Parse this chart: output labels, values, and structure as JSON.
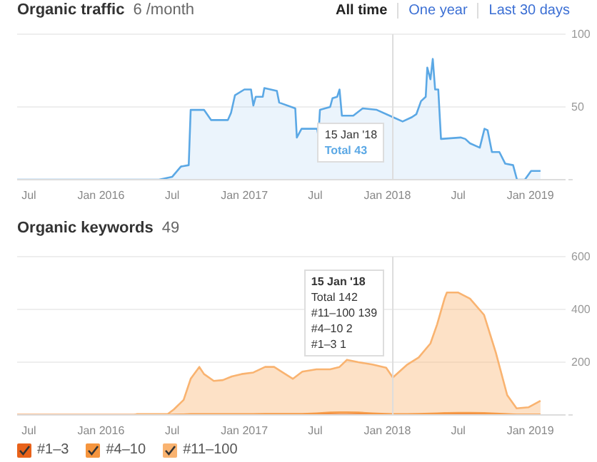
{
  "chart_data": [
    {
      "type": "area",
      "title": "Organic traffic",
      "subtitle": "6 /month",
      "x": [
        "2015-06-01",
        "2016-05-28",
        "2016-07-01",
        "2016-07-23",
        "2016-08-12",
        "2016-08-17",
        "2016-08-29",
        "2016-09-20",
        "2016-10-08",
        "2016-11-20",
        "2016-11-28",
        "2016-12-08",
        "2017-01-01",
        "2017-01-18",
        "2017-01-24",
        "2017-01-30",
        "2017-02-17",
        "2017-02-21",
        "2017-03-25",
        "2017-03-31",
        "2017-05-11",
        "2017-05-15",
        "2017-05-27",
        "2017-07-06",
        "2017-07-09",
        "2017-07-13",
        "2017-08-08",
        "2017-08-14",
        "2017-08-26",
        "2017-09-01",
        "2017-09-07",
        "2017-10-06",
        "2017-10-30",
        "2017-12-05",
        "2018-01-15",
        "2018-02-09",
        "2018-03-05",
        "2018-03-16",
        "2018-03-28",
        "2018-04-09",
        "2018-04-13",
        "2018-04-21",
        "2018-04-27",
        "2018-05-03",
        "2018-05-11",
        "2018-05-18",
        "2018-07-07",
        "2018-07-19",
        "2018-07-31",
        "2018-08-25",
        "2018-09-06",
        "2018-09-14",
        "2018-09-25",
        "2018-10-14",
        "2018-10-29",
        "2018-11-18",
        "2018-11-28",
        "2018-12-18",
        "2019-01-03",
        "2019-01-27"
      ],
      "values": [
        0,
        0,
        2,
        9,
        10,
        48,
        48,
        48,
        41,
        41,
        46,
        58,
        62,
        62,
        51,
        57,
        57,
        63,
        61,
        53,
        49,
        29,
        35,
        35,
        30,
        48,
        50,
        56,
        57,
        62,
        44,
        44,
        49,
        48,
        43,
        40,
        43,
        45,
        54,
        57,
        77,
        69,
        83,
        62,
        62,
        28,
        29,
        28,
        25,
        22,
        35,
        34,
        19,
        19,
        11,
        10,
        0,
        0,
        6,
        6
      ],
      "color": "#5ba8e5",
      "xlim": [
        "2015-06-01",
        "2019-04-01"
      ],
      "xticks": [
        {
          "value": "2015-07-01",
          "label": "Jul"
        },
        {
          "value": "2016-01-01",
          "label": "Jan 2016"
        },
        {
          "value": "2016-07-01",
          "label": "Jul"
        },
        {
          "value": "2017-01-01",
          "label": "Jan 2017"
        },
        {
          "value": "2017-07-01",
          "label": "Jul"
        },
        {
          "value": "2018-01-01",
          "label": "Jan 2018"
        },
        {
          "value": "2018-07-01",
          "label": "Jul"
        },
        {
          "value": "2019-01-01",
          "label": "Jan 2019"
        }
      ],
      "ylim": [
        0,
        100
      ],
      "yticks": [
        {
          "value": 0,
          "label": null
        },
        50,
        100
      ],
      "grid": "y",
      "ref_lines": [
        {
          "axis": "x",
          "value": "2018-01-15",
          "color": "#dddddd"
        }
      ],
      "annotations": [
        "All time",
        "One year",
        "Last 30 days",
        "15 Jan '18",
        "Total 43"
      ]
    },
    {
      "type": "area",
      "stacked": true,
      "title": "Organic keywords",
      "subtitle": "49",
      "x": [
        "2015-06-01",
        "2016-03-25",
        "2016-04-01",
        "2016-06-20",
        "2016-07-05",
        "2016-07-30",
        "2016-08-17",
        "2016-09-08",
        "2016-09-20",
        "2016-10-15",
        "2016-11-07",
        "2016-11-30",
        "2016-12-25",
        "2017-01-24",
        "2017-02-23",
        "2017-03-18",
        "2017-04-09",
        "2017-05-05",
        "2017-05-29",
        "2017-07-04",
        "2017-08-08",
        "2017-09-01",
        "2017-09-20",
        "2017-10-19",
        "2017-11-24",
        "2017-12-29",
        "2018-01-15",
        "2018-02-21",
        "2018-03-22",
        "2018-04-21",
        "2018-05-08",
        "2018-05-27",
        "2018-06-02",
        "2018-07-01",
        "2018-07-31",
        "2018-09-05",
        "2018-10-05",
        "2018-11-03",
        "2018-11-27",
        "2018-12-27",
        "2019-01-27"
      ],
      "series": [
        {
          "name": "#1–3",
          "color": "#e8621a",
          "values": [
            0,
            0,
            0,
            0,
            0,
            1,
            1,
            1,
            1,
            1,
            1,
            1,
            1,
            1,
            1,
            1,
            1,
            1,
            1,
            1,
            1,
            1,
            1,
            1,
            1,
            1,
            1,
            1,
            1,
            1,
            1,
            1,
            1,
            1,
            1,
            1,
            1,
            1,
            0,
            0,
            0
          ]
        },
        {
          "name": "#4–10",
          "color": "#f5953e",
          "values": [
            0,
            0,
            0,
            0,
            1,
            1,
            2,
            2,
            2,
            2,
            2,
            2,
            2,
            2,
            3,
            3,
            3,
            3,
            3,
            5,
            8,
            9,
            9,
            8,
            5,
            3,
            2,
            2,
            3,
            4,
            5,
            6,
            6,
            7,
            7,
            6,
            4,
            2,
            1,
            1,
            1
          ]
        },
        {
          "name": "#11–100",
          "color": "#f9b370",
          "values": [
            0,
            0,
            3,
            4,
            20,
            55,
            134,
            179,
            152,
            126,
            129,
            143,
            152,
            158,
            178,
            178,
            157,
            133,
            160,
            167,
            164,
            172,
            199,
            191,
            185,
            175,
            139,
            188,
            214,
            266,
            337,
            434,
            457,
            456,
            433,
            372,
            231,
            72,
            24,
            28,
            53
          ]
        }
      ],
      "xlim": [
        "2015-06-01",
        "2019-04-01"
      ],
      "xticks": [
        {
          "value": "2015-07-01",
          "label": "Jul"
        },
        {
          "value": "2016-01-01",
          "label": "Jan 2016"
        },
        {
          "value": "2016-07-01",
          "label": "Jul"
        },
        {
          "value": "2017-01-01",
          "label": "Jan 2017"
        },
        {
          "value": "2017-07-01",
          "label": "Jul"
        },
        {
          "value": "2018-01-01",
          "label": "Jan 2018"
        },
        {
          "value": "2018-07-01",
          "label": "Jul"
        },
        {
          "value": "2019-01-01",
          "label": "Jan 2019"
        }
      ],
      "ylim": [
        0,
        600
      ],
      "yticks": [
        {
          "value": 0,
          "label": null
        },
        200,
        400,
        600
      ],
      "grid": "y",
      "legend": "bottom",
      "ref_lines": [
        {
          "axis": "x",
          "value": "2018-01-15",
          "color": "#dddddd"
        }
      ],
      "annotations": [
        "15 Jan '18",
        "Total 142",
        "#11–100 139",
        "#4–10 2",
        "#1–3 1"
      ]
    }
  ]
}
